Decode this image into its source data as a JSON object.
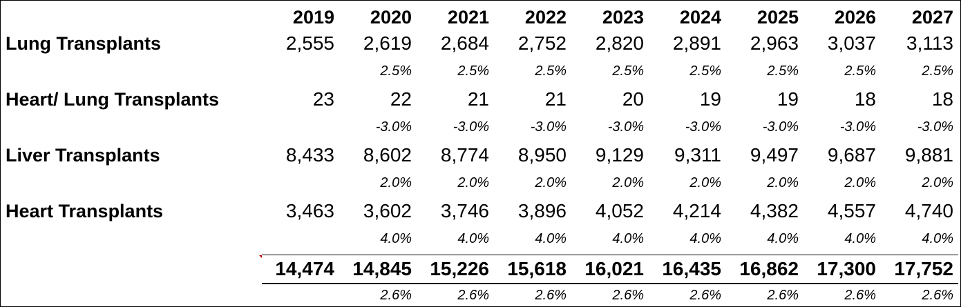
{
  "years": [
    "2019",
    "2020",
    "2021",
    "2022",
    "2023",
    "2024",
    "2025",
    "2026",
    "2027"
  ],
  "rows": [
    {
      "label": "Lung Transplants",
      "values": [
        "2,555",
        "2,619",
        "2,684",
        "2,752",
        "2,820",
        "2,891",
        "2,963",
        "3,037",
        "3,113"
      ],
      "growth": [
        "",
        "2.5%",
        "2.5%",
        "2.5%",
        "2.5%",
        "2.5%",
        "2.5%",
        "2.5%",
        "2.5%"
      ]
    },
    {
      "label": "Heart/ Lung Transplants",
      "values": [
        "23",
        "22",
        "21",
        "21",
        "20",
        "19",
        "19",
        "18",
        "18"
      ],
      "growth": [
        "",
        "-3.0%",
        "-3.0%",
        "-3.0%",
        "-3.0%",
        "-3.0%",
        "-3.0%",
        "-3.0%",
        "-3.0%"
      ]
    },
    {
      "label": "Liver Transplants",
      "values": [
        "8,433",
        "8,602",
        "8,774",
        "8,950",
        "9,129",
        "9,311",
        "9,497",
        "9,687",
        "9,881"
      ],
      "growth": [
        "",
        "2.0%",
        "2.0%",
        "2.0%",
        "2.0%",
        "2.0%",
        "2.0%",
        "2.0%",
        "2.0%"
      ]
    },
    {
      "label": "Heart Transplants",
      "values": [
        "3,463",
        "3,602",
        "3,746",
        "3,896",
        "4,052",
        "4,214",
        "4,382",
        "4,557",
        "4,740"
      ],
      "growth": [
        "",
        "4.0%",
        "4.0%",
        "4.0%",
        "4.0%",
        "4.0%",
        "4.0%",
        "4.0%",
        "4.0%"
      ]
    }
  ],
  "total": {
    "values": [
      "14,474",
      "14,845",
      "15,226",
      "15,618",
      "16,021",
      "16,435",
      "16,862",
      "17,300",
      "17,752"
    ],
    "growth": [
      "",
      "2.6%",
      "2.6%",
      "2.6%",
      "2.6%",
      "2.6%",
      "2.6%",
      "2.6%",
      "2.6%"
    ]
  },
  "colors": {
    "text": "#000000",
    "background": "#ffffff",
    "comment_marker": "#c00000"
  }
}
